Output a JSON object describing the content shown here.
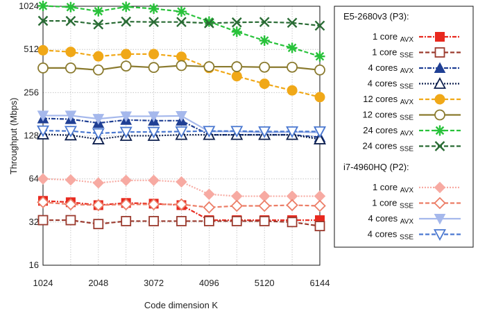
{
  "chart_data": {
    "type": "line",
    "xlabel": "Code dimension K",
    "ylabel": "Throughput (Mbps)",
    "xlim": [
      1024,
      6144
    ],
    "ylim": [
      16,
      1024
    ],
    "yscale": "log2",
    "xticks": [
      1024,
      2048,
      3072,
      4096,
      5120,
      6144
    ],
    "yticks": [
      16,
      32,
      64,
      128,
      256,
      512,
      1024
    ],
    "grid": true,
    "legend_placement": "right",
    "legend_groups": [
      {
        "title": "E5-2680v3 (P3):",
        "series_range": [
          0,
          8
        ]
      },
      {
        "title": "i7-4960HQ (P2):",
        "series_range": [
          8,
          12
        ]
      }
    ],
    "x": [
      1024,
      1536,
      2048,
      2560,
      3072,
      3584,
      4096,
      4608,
      5120,
      5632,
      6144
    ],
    "series": [
      {
        "name": "1 core",
        "sub": "AVX",
        "color": "#e8281e",
        "marker": "square-filled",
        "dash": "6 2 2 2",
        "values": [
          45,
          44,
          42,
          43.5,
          43,
          42,
          33,
          33,
          33,
          33,
          33
        ]
      },
      {
        "name": "1 core",
        "sub": "SSE",
        "color": "#9b3a2e",
        "marker": "square-open",
        "dash": "6 3",
        "values": [
          33,
          33,
          31,
          32.5,
          32.5,
          32.5,
          32.5,
          32.5,
          32.5,
          32,
          30
        ]
      },
      {
        "name": "4 cores",
        "sub": "AVX",
        "color": "#1f3f94",
        "marker": "triangle-up-filled",
        "dash": "6 2 2 2",
        "values": [
          169,
          167,
          157,
          165,
          163,
          163,
          130,
          130,
          130,
          130,
          125
        ]
      },
      {
        "name": "4 cores",
        "sub": "SSE",
        "color": "#0d1f4d",
        "marker": "triangle-up-open",
        "dash": "2 2",
        "values": [
          131,
          129,
          121,
          128,
          128,
          130,
          130,
          130,
          130,
          130,
          121
        ]
      },
      {
        "name": "12 cores",
        "sub": "AVX",
        "color": "#f0a818",
        "marker": "circle-filled",
        "dash": "6 3",
        "values": [
          505,
          492,
          458,
          475,
          475,
          455,
          380,
          333,
          295,
          265,
          238
        ]
      },
      {
        "name": "12 cores",
        "sub": "SSE",
        "color": "#8a7a2e",
        "marker": "circle-open",
        "dash": "",
        "values": [
          380,
          380,
          368,
          392,
          383,
          395,
          388,
          388,
          385,
          385,
          368
        ]
      },
      {
        "name": "24 cores",
        "sub": "AVX",
        "color": "#28c23a",
        "marker": "star",
        "dash": "6 3",
        "values": [
          1030,
          1010,
          945,
          1015,
          985,
          940,
          800,
          680,
          590,
          525,
          458
        ]
      },
      {
        "name": "24 cores",
        "sub": "SSE",
        "color": "#2a6c35",
        "marker": "x",
        "dash": "6 3",
        "values": [
          810,
          808,
          765,
          800,
          795,
          795,
          780,
          790,
          795,
          785,
          750
        ]
      },
      {
        "name": "1 core",
        "sub": "AVX",
        "color": "#f7aaa2",
        "marker": "diamond-filled",
        "dash": "2 2",
        "values": [
          64,
          63,
          60,
          62.5,
          62.5,
          61,
          50,
          48.5,
          48.5,
          48.5,
          48.5
        ]
      },
      {
        "name": "1 core",
        "sub": "SSE",
        "color": "#ec7d66",
        "marker": "diamond-open",
        "dash": "6 3",
        "values": [
          44,
          42.5,
          42,
          42.5,
          42.5,
          42.5,
          40.5,
          41.5,
          41.5,
          42,
          41.5
        ]
      },
      {
        "name": "4 cores",
        "sub": "AVX",
        "color": "#a5b8ec",
        "marker": "triangle-down-filled",
        "dash": "",
        "values": [
          177,
          177,
          168,
          175,
          175,
          176,
          137,
          137,
          135,
          136,
          135
        ]
      },
      {
        "name": "4 cores",
        "sub": "SSE",
        "color": "#4a78d0",
        "marker": "triangle-down-open",
        "dash": "6 3",
        "values": [
          139,
          138,
          133,
          136,
          136,
          137,
          138,
          138,
          137,
          137,
          137
        ]
      }
    ]
  }
}
